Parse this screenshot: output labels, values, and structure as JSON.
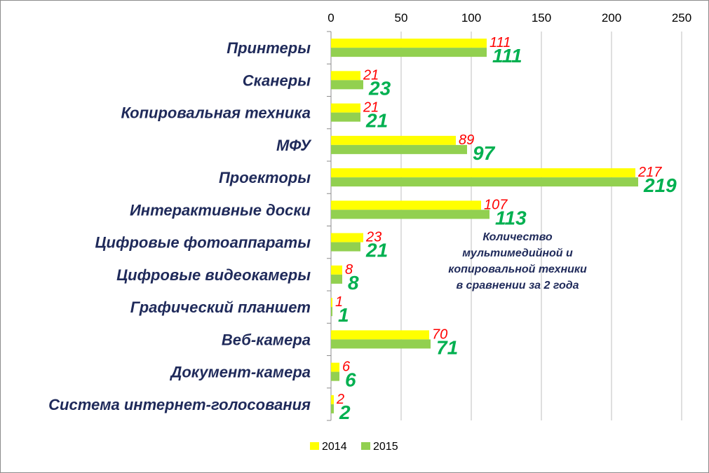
{
  "chart_data": {
    "type": "bar",
    "orientation": "horizontal",
    "categories": [
      "Принтеры",
      "Сканеры",
      "Копировальная  техника",
      "МФУ",
      "Проекторы",
      "Интерактивные  доски",
      "Цифровые  фотоаппараты",
      "Цифровые  видеокамеры",
      "Графический  планшет",
      "Веб-камера",
      "Документ-камера",
      "Система  интернет-голосования"
    ],
    "series": [
      {
        "name": "2014",
        "color": "#ffff00",
        "values": [
          111,
          21,
          21,
          89,
          217,
          107,
          23,
          8,
          1,
          70,
          6,
          2
        ]
      },
      {
        "name": "2015",
        "color": "#92d050",
        "values": [
          111,
          23,
          21,
          97,
          219,
          113,
          21,
          8,
          1,
          71,
          6,
          2
        ]
      }
    ],
    "x_ticks": [
      "0",
      "50",
      "100",
      "150",
      "200",
      "250"
    ],
    "xlim": [
      0,
      250
    ],
    "x_axis_position": "top",
    "grid": true,
    "legend_position": "bottom",
    "annotation_lines": [
      "Количество",
      "мультимедийной и",
      "копировальной техники",
      "в сравнении за 2 года"
    ],
    "data_label_colors": [
      "#ff0000",
      "#00b050"
    ]
  }
}
